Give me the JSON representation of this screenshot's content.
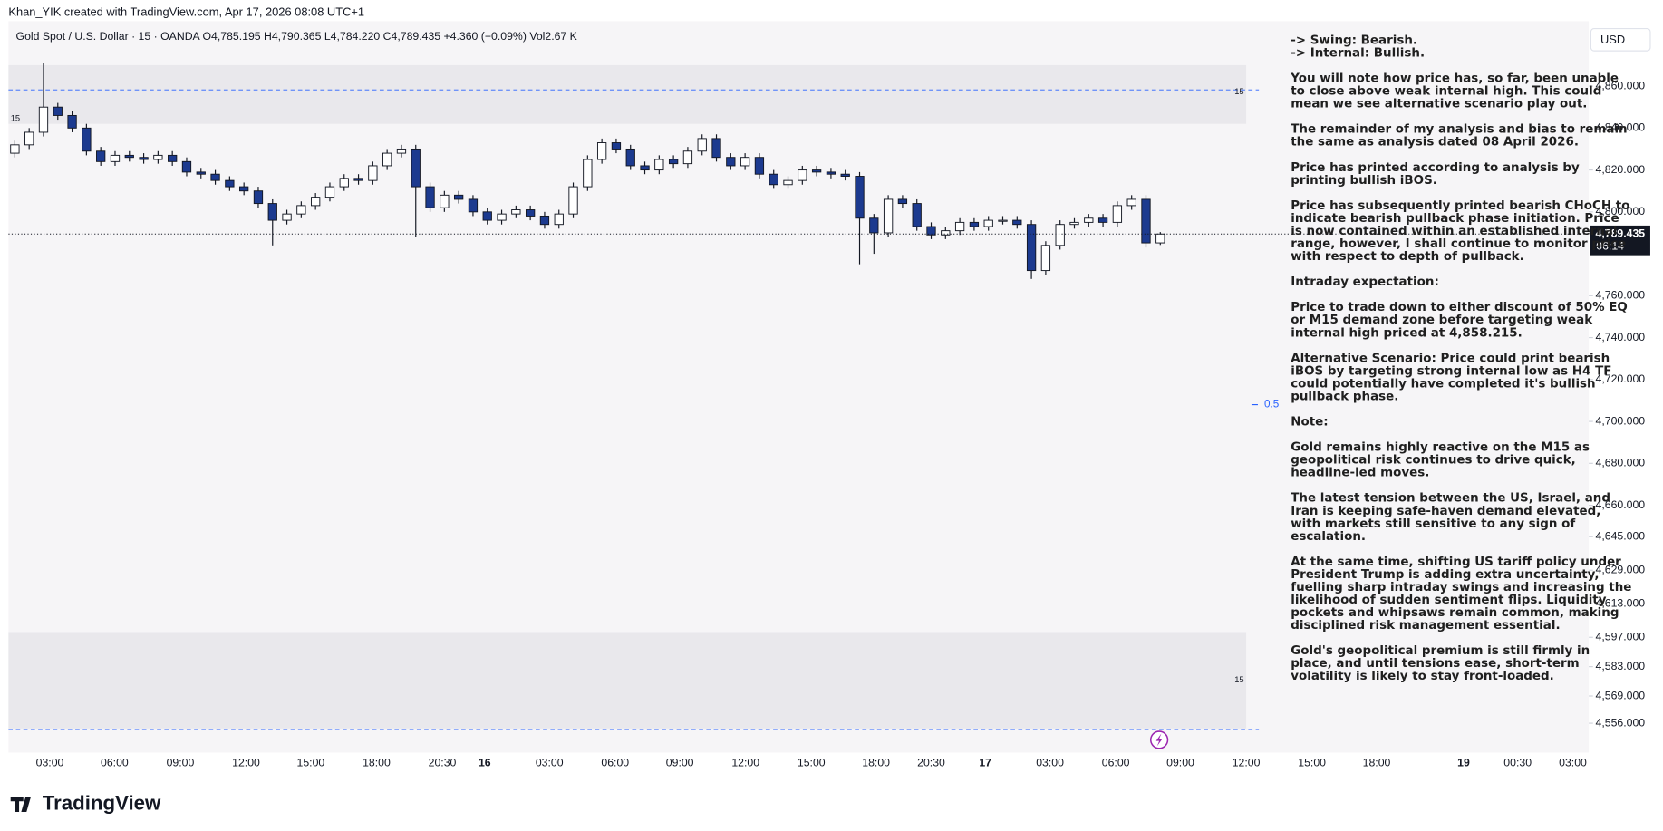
{
  "header": {
    "credit": "Khan_YIK created with TradingView.com, Apr 17, 2026 08:08 UTC+1",
    "symbol": "Gold Spot / U.S. Dollar · 15 · OANDA  O4,785.195  H4,790.365  L4,784.220  C4,789.435  +4.360 (+0.09%)  Vol2.67 K"
  },
  "chart_data": {
    "type": "candlestick",
    "open": [
      4828,
      4832,
      4838,
      4850,
      4846,
      4840,
      4829,
      4824,
      4827,
      4826,
      4825,
      4827,
      4824,
      4819,
      4818,
      4815,
      4812,
      4810,
      4804,
      4796,
      4799,
      4803,
      4807,
      4812,
      4816,
      4815,
      4822,
      4828,
      4830,
      4812,
      4802,
      4808,
      4806,
      4800,
      4796,
      4799,
      4801,
      4798,
      4794,
      4799,
      4812,
      4825,
      4833,
      4830,
      4822,
      4820,
      4825,
      4823,
      4829,
      4835,
      4826,
      4822,
      4826,
      4818,
      4813,
      4815,
      4820,
      4819,
      4818,
      4817,
      4797,
      4790,
      4806,
      4804,
      4793,
      4789,
      4791,
      4795,
      4793,
      4796,
      4796,
      4794,
      4772,
      4784,
      4794,
      4795,
      4797,
      4795,
      4803,
      4806,
      4785.195
    ],
    "high": [
      4834,
      4840,
      4871,
      4852,
      4848,
      4842,
      4831,
      4829,
      4829,
      4828,
      4829,
      4829,
      4826,
      4821,
      4820,
      4817,
      4814,
      4812,
      4806,
      4801,
      4805,
      4809,
      4814,
      4818,
      4818,
      4824,
      4830,
      4832,
      4832,
      4814,
      4810,
      4810,
      4808,
      4802,
      4801,
      4803,
      4803,
      4800,
      4801,
      4814,
      4827,
      4835,
      4835,
      4832,
      4824,
      4827,
      4827,
      4831,
      4837,
      4837,
      4828,
      4828,
      4828,
      4820,
      4817,
      4822,
      4822,
      4821,
      4820,
      4819,
      4799,
      4808,
      4808,
      4806,
      4795,
      4793,
      4797,
      4797,
      4798,
      4798,
      4798,
      4796,
      4786,
      4796,
      4797,
      4799,
      4799,
      4805,
      4808,
      4808,
      4790.365
    ],
    "low": [
      4826,
      4830,
      4836,
      4844,
      4838,
      4827,
      4822,
      4822,
      4824,
      4823,
      4823,
      4822,
      4817,
      4816,
      4813,
      4810,
      4808,
      4802,
      4784,
      4794,
      4797,
      4801,
      4805,
      4810,
      4813,
      4813,
      4820,
      4826,
      4788,
      4800,
      4800,
      4804,
      4798,
      4794,
      4794,
      4797,
      4796,
      4792,
      4792,
      4797,
      4810,
      4823,
      4828,
      4820,
      4818,
      4818,
      4821,
      4821,
      4827,
      4824,
      4820,
      4820,
      4816,
      4811,
      4811,
      4813,
      4817,
      4816,
      4815,
      4775,
      4780,
      4788,
      4802,
      4791,
      4787,
      4787,
      4789,
      4791,
      4791,
      4794,
      4792,
      4768,
      4770,
      4782,
      4792,
      4793,
      4793,
      4793,
      4801,
      4783,
      4784.22
    ],
    "close": [
      4832,
      4838,
      4850,
      4846,
      4840,
      4829,
      4824,
      4827,
      4826,
      4825,
      4827,
      4824,
      4819,
      4818,
      4815,
      4812,
      4810,
      4804,
      4796,
      4799,
      4803,
      4807,
      4812,
      4816,
      4815,
      4822,
      4828,
      4830,
      4812,
      4802,
      4808,
      4806,
      4800,
      4796,
      4799,
      4801,
      4798,
      4794,
      4799,
      4812,
      4825,
      4833,
      4830,
      4822,
      4820,
      4825,
      4823,
      4829,
      4835,
      4826,
      4822,
      4826,
      4818,
      4813,
      4815,
      4820,
      4819,
      4818,
      4817,
      4797,
      4790,
      4806,
      4804,
      4793,
      4789,
      4791,
      4795,
      4793,
      4796,
      4796,
      4794,
      4772,
      4784,
      4794,
      4795,
      4797,
      4795,
      4803,
      4806,
      4785.195,
      4789.435
    ],
    "up_color": "#ffffff",
    "down_color": "#1c3a8f",
    "ylim": [
      4542,
      4891
    ],
    "yticks": [
      {
        "value": 4860,
        "label": "4,860.000"
      },
      {
        "value": 4840,
        "label": "4,840.000"
      },
      {
        "value": 4820,
        "label": "4,820.000"
      },
      {
        "value": 4800,
        "label": "4,800.000"
      },
      {
        "value": 4760,
        "label": "4,760.000"
      },
      {
        "value": 4740,
        "label": "4,740.000"
      },
      {
        "value": 4720,
        "label": "4,720.000"
      },
      {
        "value": 4700,
        "label": "4,700.000"
      },
      {
        "value": 4680,
        "label": "4,680.000"
      },
      {
        "value": 4660,
        "label": "4,660.000"
      },
      {
        "value": 4645,
        "label": "4,645.000"
      },
      {
        "value": 4629,
        "label": "4,629.000"
      },
      {
        "value": 4613,
        "label": "4,613.000"
      },
      {
        "value": 4597,
        "label": "4,597.000"
      },
      {
        "value": 4583,
        "label": "4,583.000"
      },
      {
        "value": 4569,
        "label": "4,569.000"
      },
      {
        "value": 4556,
        "label": "4,556.000"
      }
    ],
    "xtick_labels": [
      "03:00",
      "06:00",
      "09:00",
      "12:00",
      "15:00",
      "18:00",
      "20:30",
      "16",
      "03:00",
      "06:00",
      "09:00",
      "12:00",
      "15:00",
      "18:00",
      "20:30",
      "17",
      "03:00",
      "06:00",
      "09:00",
      "12:00",
      "15:00",
      "18:00",
      "19",
      "00:30",
      "03:00"
    ],
    "currency": "USD",
    "last_price": {
      "value": 4789.435,
      "label": "4,789.435"
    },
    "countdown": "06:14",
    "zones": [
      {
        "top": 4870,
        "bottom": 4842,
        "label": "15"
      },
      {
        "top": 4599.5,
        "bottom": 4553.5,
        "label": "15"
      }
    ],
    "levels": [
      {
        "value": 4858.215,
        "label": "15"
      },
      {
        "value": 4553
      }
    ],
    "eq": {
      "value": 4708,
      "label": "0.5"
    }
  },
  "annotation": [
    [
      "-> Swing: Bearish.",
      "-> Internal: Bullish."
    ],
    [
      "You will note how price has, so far, been unable",
      "to close above weak internal high.  This could",
      "mean we see alternative scenario play out."
    ],
    [
      "The remainder of my analysis and bias to remain",
      "the same as analysis dated 08 April 2026."
    ],
    [
      "Price has printed according to analysis by",
      "printing bullish iBOS."
    ],
    [
      "Price has subsequently printed bearish CHoCH to",
      "indicate bearish pullback phase initiation.  Price",
      "is now contained within an established internal",
      "range, however, I shall continue to monitor price",
      "with respect to depth of pullback."
    ],
    [
      "Intraday expectation:"
    ],
    [
      "Price to trade down to either discount of 50% EQ",
      "or M15 demand zone before targeting weak",
      "internal high priced at 4,858.215."
    ],
    [
      "Alternative Scenario: Price could print bearish",
      "iBOS by targeting strong internal low as H4 TF",
      "could potentially have completed it's bullish",
      "pullback phase."
    ],
    [
      "Note:"
    ],
    [
      "Gold remains highly reactive on the M15 as",
      "geopolitical risk continues to drive quick,",
      "headline-led moves."
    ],
    [
      "The latest tension between the US, Israel, and",
      "Iran is keeping safe-haven demand elevated,",
      "with markets still sensitive to any sign of",
      "escalation."
    ],
    [
      "At the same time, shifting US tariff policy under",
      "President Trump is adding extra uncertainty,",
      "fuelling sharp intraday swings and increasing the",
      "likelihood of sudden sentiment flips. Liquidity",
      "pockets and whipsaws remain common, making",
      "disciplined risk management essential."
    ],
    [
      "Gold's geopolitical premium is still firmly in",
      "place, and until tensions ease, short-term",
      "volatility is likely to stay front-loaded."
    ]
  ],
  "brand": "TradingView"
}
